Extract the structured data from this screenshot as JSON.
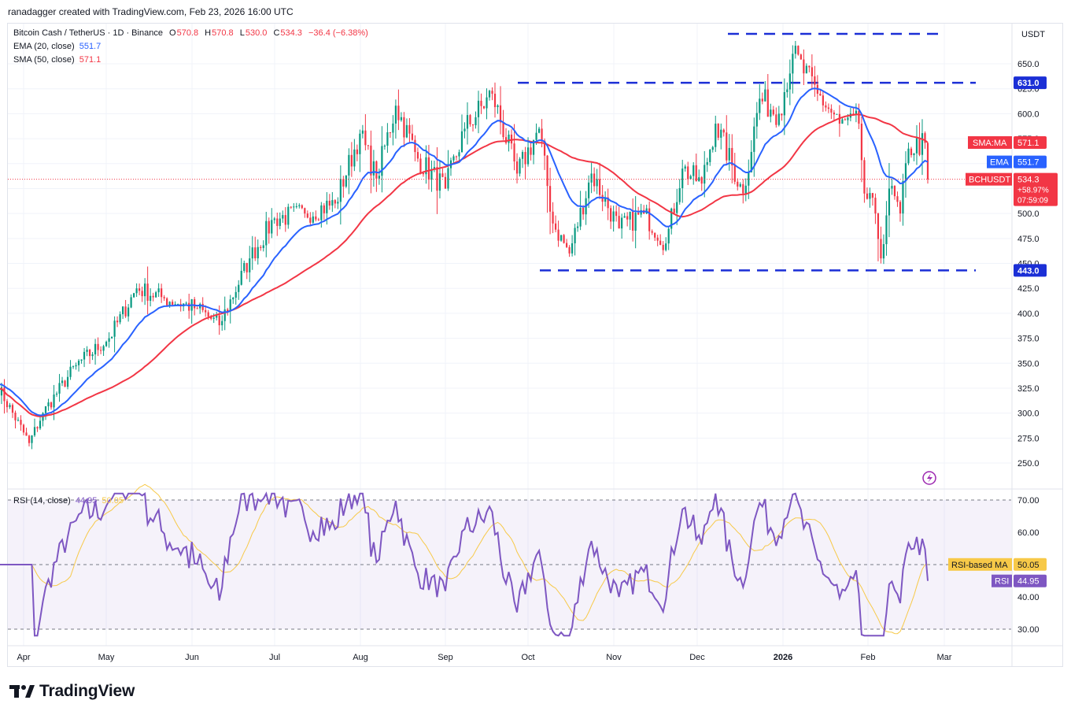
{
  "header": {
    "attribution": "ranadagger created with TradingView.com, Feb 23, 2026 16:00 UTC"
  },
  "legend": {
    "symbol": "Bitcoin Cash / TetherUS · 1D · Binance",
    "o_label": "O",
    "o": "570.8",
    "h_label": "H",
    "h": "570.8",
    "l_label": "L",
    "l": "530.0",
    "c_label": "C",
    "c": "534.3",
    "change": "−36.4 (−6.38%)",
    "ema_name": "EMA (20, close)",
    "ema_value": "551.7",
    "sma_name": "SMA (50, close)",
    "sma_value": "571.1",
    "rsi_name": "RSI (14, close)",
    "rsi_value": "44.95",
    "rsi_ma_value": "50.05"
  },
  "currency": "USDT",
  "brand": "TradingView",
  "colors": {
    "up": "#089981",
    "down": "#f23645",
    "ema": "#2962ff",
    "sma": "#f23645",
    "rsi": "#7e57c2",
    "rsi_ma": "#f7c948",
    "level": "#1b2fd6",
    "grid": "#f0f3fa"
  },
  "chart_data": [
    {
      "type": "candlestick",
      "title": "Bitcoin Cash / TetherUS · 1D · Binance",
      "ylim": [
        230,
        690
      ],
      "y_ticks": [
        250.0,
        275.0,
        300.0,
        325.0,
        350.0,
        375.0,
        400.0,
        425.0,
        450.0,
        475.0,
        500.0,
        525.0,
        550.0,
        575.0,
        600.0,
        625.0,
        650.0
      ],
      "x_ticks": [
        "Apr",
        "May",
        "Jun",
        "Jul",
        "Aug",
        "Sep",
        "Oct",
        "Nov",
        "Dec",
        "2026",
        "Feb",
        "Mar"
      ],
      "grid": true,
      "horizontal_levels": [
        {
          "value": 443.0,
          "label": "443.0"
        },
        {
          "value": 631.0,
          "label": "631.0"
        },
        {
          "value": 680.0,
          "label": ""
        }
      ],
      "price_tags": [
        {
          "label": "SMA:MA",
          "value": "571.1",
          "y": 571.1
        },
        {
          "label": "EMA",
          "value": "551.7",
          "y": 551.7
        },
        {
          "label": "BCHUSDT",
          "value": "534.3",
          "y": 534.3,
          "extra": [
            "+58.97%",
            "07:59:09"
          ]
        }
      ],
      "anchors": [
        {
          "date": "2025-03-22",
          "close": 330
        },
        {
          "date": "2025-04-03",
          "close": 270
        },
        {
          "date": "2025-04-08",
          "close": 300
        },
        {
          "date": "2025-04-20",
          "close": 348
        },
        {
          "date": "2025-05-02",
          "close": 375
        },
        {
          "date": "2025-05-12",
          "close": 425
        },
        {
          "date": "2025-05-22",
          "close": 415
        },
        {
          "date": "2025-06-03",
          "close": 405
        },
        {
          "date": "2025-06-11",
          "close": 388
        },
        {
          "date": "2025-06-22",
          "close": 455
        },
        {
          "date": "2025-07-01",
          "close": 495
        },
        {
          "date": "2025-07-12",
          "close": 500
        },
        {
          "date": "2025-07-23",
          "close": 510
        },
        {
          "date": "2025-08-01",
          "close": 580
        },
        {
          "date": "2025-08-07",
          "close": 535
        },
        {
          "date": "2025-08-14",
          "close": 608
        },
        {
          "date": "2025-08-22",
          "close": 555
        },
        {
          "date": "2025-09-01",
          "close": 525
        },
        {
          "date": "2025-09-08",
          "close": 585
        },
        {
          "date": "2025-09-18",
          "close": 620
        },
        {
          "date": "2025-09-27",
          "close": 540
        },
        {
          "date": "2025-10-05",
          "close": 585
        },
        {
          "date": "2025-10-10",
          "close": 490
        },
        {
          "date": "2025-10-16",
          "close": 460
        },
        {
          "date": "2025-10-24",
          "close": 540
        },
        {
          "date": "2025-11-03",
          "close": 485
        },
        {
          "date": "2025-11-12",
          "close": 500
        },
        {
          "date": "2025-11-20",
          "close": 470
        },
        {
          "date": "2025-11-26",
          "close": 545
        },
        {
          "date": "2025-12-03",
          "close": 530
        },
        {
          "date": "2025-12-08",
          "close": 590
        },
        {
          "date": "2025-12-18",
          "close": 520
        },
        {
          "date": "2025-12-24",
          "close": 615
        },
        {
          "date": "2025-12-31",
          "close": 600
        },
        {
          "date": "2026-01-05",
          "close": 660
        },
        {
          "date": "2026-01-14",
          "close": 620
        },
        {
          "date": "2026-01-22",
          "close": 590
        },
        {
          "date": "2026-01-29",
          "close": 590
        },
        {
          "date": "2026-01-31",
          "close": 520
        },
        {
          "date": "2026-02-04",
          "close": 500
        },
        {
          "date": "2026-02-06",
          "close": 455
        },
        {
          "date": "2026-02-09",
          "close": 525
        },
        {
          "date": "2026-02-13",
          "close": 500
        },
        {
          "date": "2026-02-16",
          "close": 565
        },
        {
          "date": "2026-02-22",
          "close": 570.8
        },
        {
          "date": "2026-02-23",
          "close": 534.3
        }
      ],
      "last_candle": {
        "date": "2026-02-23",
        "open": 570.8,
        "high": 570.8,
        "low": 530.0,
        "close": 534.3
      },
      "series": [
        {
          "name": "EMA (20, close)",
          "last": 551.7
        },
        {
          "name": "SMA (50, close)",
          "last": 571.1
        }
      ]
    },
    {
      "type": "line",
      "title": "RSI (14, close)",
      "ylim": [
        25,
        73
      ],
      "y_ticks": [
        30.0,
        40.0,
        50.0,
        60.0,
        70.0
      ],
      "bands": [
        70,
        50,
        30
      ],
      "tags": [
        {
          "label": "RSI-based MA",
          "value": "50.05"
        },
        {
          "label": "RSI",
          "value": "44.95"
        }
      ],
      "series": [
        {
          "name": "RSI",
          "last": 44.95
        },
        {
          "name": "RSI-based MA",
          "last": 50.05
        }
      ]
    }
  ]
}
